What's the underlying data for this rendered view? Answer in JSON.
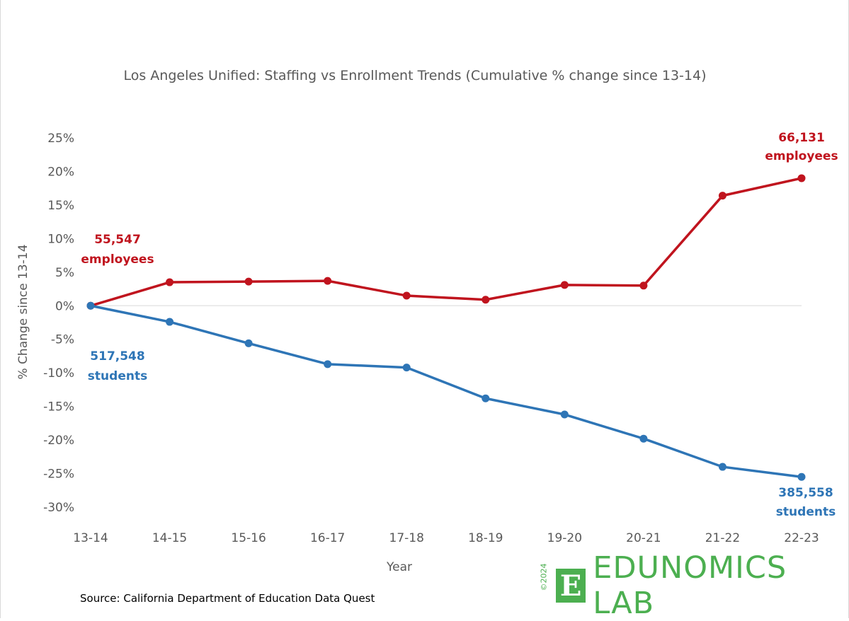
{
  "colors": {
    "employees": "#c0141e",
    "students": "#2e75b6",
    "text": "#595959",
    "brand": "#4caf50",
    "zero_line": "#e6e6e6"
  },
  "chart_data": {
    "type": "line",
    "title": "Los Angeles Unified: Staffing vs Enrollment Trends (Cumulative % change since 13-14)",
    "xlabel": "Year",
    "ylabel": "% Change since 13-14",
    "categories": [
      "13-14",
      "14-15",
      "15-16",
      "16-17",
      "17-18",
      "18-19",
      "19-20",
      "20-21",
      "21-22",
      "22-23"
    ],
    "yticks": [
      "25%",
      "20%",
      "15%",
      "10%",
      "5%",
      "0%",
      "-5%",
      "-10%",
      "-15%",
      "-20%",
      "-25%",
      "-30%"
    ],
    "ylim": [
      -30,
      25
    ],
    "grid": false,
    "series": [
      {
        "key": "employees",
        "values": [
          0,
          3.5,
          3.6,
          3.7,
          1.5,
          0.9,
          3.1,
          3.0,
          16.4,
          19.0
        ]
      },
      {
        "key": "students",
        "values": [
          0,
          -2.4,
          -5.6,
          -8.7,
          -9.2,
          -13.8,
          -16.2,
          -19.8,
          -24.0,
          -25.5
        ]
      }
    ],
    "annotations": {
      "employees_start": [
        "55,547",
        "employees"
      ],
      "employees_end": [
        "66,131",
        "employees"
      ],
      "students_start": [
        "517,548",
        "students"
      ],
      "students_end": [
        "385,558",
        "students"
      ]
    }
  },
  "source": "Source: California Department of Education Data Quest",
  "logo": {
    "copyright": "©2024",
    "mark": "E",
    "text": "EDUNOMICS LAB"
  }
}
